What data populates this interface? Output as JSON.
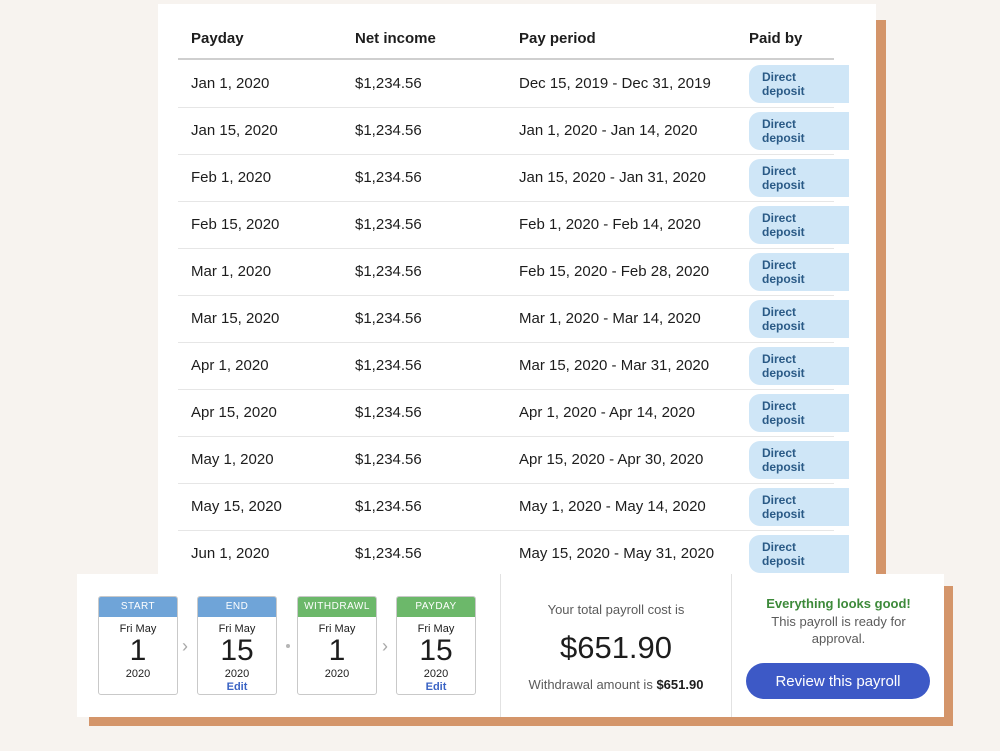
{
  "table": {
    "headers": {
      "payday": "Payday",
      "net_income": "Net income",
      "pay_period": "Pay period",
      "paid_by": "Paid by"
    },
    "rows": [
      {
        "payday": "Jan 1, 2020",
        "net": "$1,234.56",
        "period": "Dec 15, 2019 - Dec 31, 2019",
        "paid_by": "Direct deposit"
      },
      {
        "payday": "Jan 15, 2020",
        "net": "$1,234.56",
        "period": "Jan 1, 2020 - Jan 14, 2020",
        "paid_by": "Direct deposit"
      },
      {
        "payday": "Feb 1, 2020",
        "net": "$1,234.56",
        "period": "Jan 15, 2020 - Jan 31, 2020",
        "paid_by": "Direct deposit"
      },
      {
        "payday": "Feb 15, 2020",
        "net": "$1,234.56",
        "period": "Feb 1, 2020 - Feb 14, 2020",
        "paid_by": "Direct deposit"
      },
      {
        "payday": "Mar 1, 2020",
        "net": "$1,234.56",
        "period": "Feb 15, 2020 - Feb 28, 2020",
        "paid_by": "Direct deposit"
      },
      {
        "payday": "Mar 15, 2020",
        "net": "$1,234.56",
        "period": "Mar 1, 2020 - Mar 14, 2020",
        "paid_by": "Direct deposit"
      },
      {
        "payday": "Apr 1, 2020",
        "net": "$1,234.56",
        "period": "Mar 15, 2020 - Mar 31, 2020",
        "paid_by": "Direct deposit"
      },
      {
        "payday": "Apr 15, 2020",
        "net": "$1,234.56",
        "period": "Apr 1, 2020 - Apr 14, 2020",
        "paid_by": "Direct deposit"
      },
      {
        "payday": "May 1, 2020",
        "net": "$1,234.56",
        "period": "Apr 15, 2020 - Apr 30, 2020",
        "paid_by": "Direct deposit"
      },
      {
        "payday": "May 15, 2020",
        "net": "$1,234.56",
        "period": "May 1, 2020 - May 14, 2020",
        "paid_by": "Direct deposit"
      },
      {
        "payday": "Jun 1, 2020",
        "net": "$1,234.56",
        "period": "May 15, 2020 - May 31, 2020",
        "paid_by": "Direct deposit"
      }
    ]
  },
  "schedule": {
    "start": {
      "label": "START",
      "dow": "Fri May",
      "day": "1",
      "year": "2020"
    },
    "end": {
      "label": "END",
      "dow": "Fri May",
      "day": "15",
      "year": "2020",
      "edit": "Edit"
    },
    "withdrawl": {
      "label": "WITHDRAWL",
      "dow": "Fri May",
      "day": "1",
      "year": "2020"
    },
    "payday": {
      "label": "PAYDAY",
      "dow": "Fri May",
      "day": "15",
      "year": "2020",
      "edit": "Edit"
    }
  },
  "summary": {
    "cost_label": "Your total payroll cost is",
    "cost_value": "$651.90",
    "withdrawal_label": "Withdrawal amount is",
    "withdrawal_value": "$651.90"
  },
  "approval": {
    "title": "Everything looks good!",
    "text": "This payroll is ready for approval.",
    "button_label": "Review this payroll"
  },
  "colors": {
    "accent": "#3d59c6",
    "badge_bg": "#cfe6f7",
    "shadow": "#d4956a",
    "success": "#3d8a3a",
    "header_blue": "#6fa4d8",
    "header_green": "#6cb86a"
  }
}
